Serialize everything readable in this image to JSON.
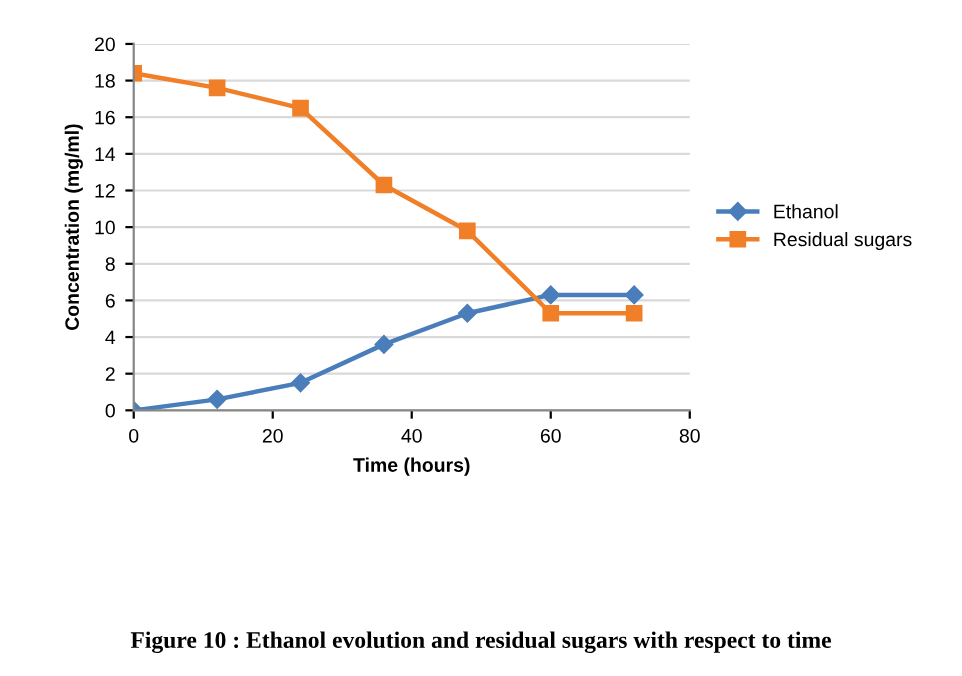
{
  "chart_data": {
    "type": "line",
    "xlabel": "Time (hours)",
    "ylabel": "Concentration (mg/ml)",
    "x": [
      0,
      12,
      24,
      36,
      48,
      60,
      72
    ],
    "series": [
      {
        "name": "Ethanol",
        "color": "#4a7ebb",
        "marker": "diamond",
        "values": [
          0,
          0.6,
          1.5,
          3.6,
          5.3,
          6.3,
          6.3
        ]
      },
      {
        "name": "Residual sugars",
        "color": "#f07f28",
        "marker": "square",
        "values": [
          18.4,
          17.6,
          16.5,
          12.3,
          9.8,
          5.3,
          5.3
        ]
      }
    ],
    "xlim": [
      0,
      80
    ],
    "xticks": [
      0,
      20,
      40,
      60,
      80
    ],
    "ylim": [
      0,
      20
    ],
    "yticks": [
      0,
      2,
      4,
      6,
      8,
      10,
      12,
      14,
      16,
      18,
      20
    ],
    "grid": "y",
    "legend": "right",
    "annotations": [
      "Figure 10 : Ethanol evolution and residual sugars with respect to time"
    ]
  }
}
